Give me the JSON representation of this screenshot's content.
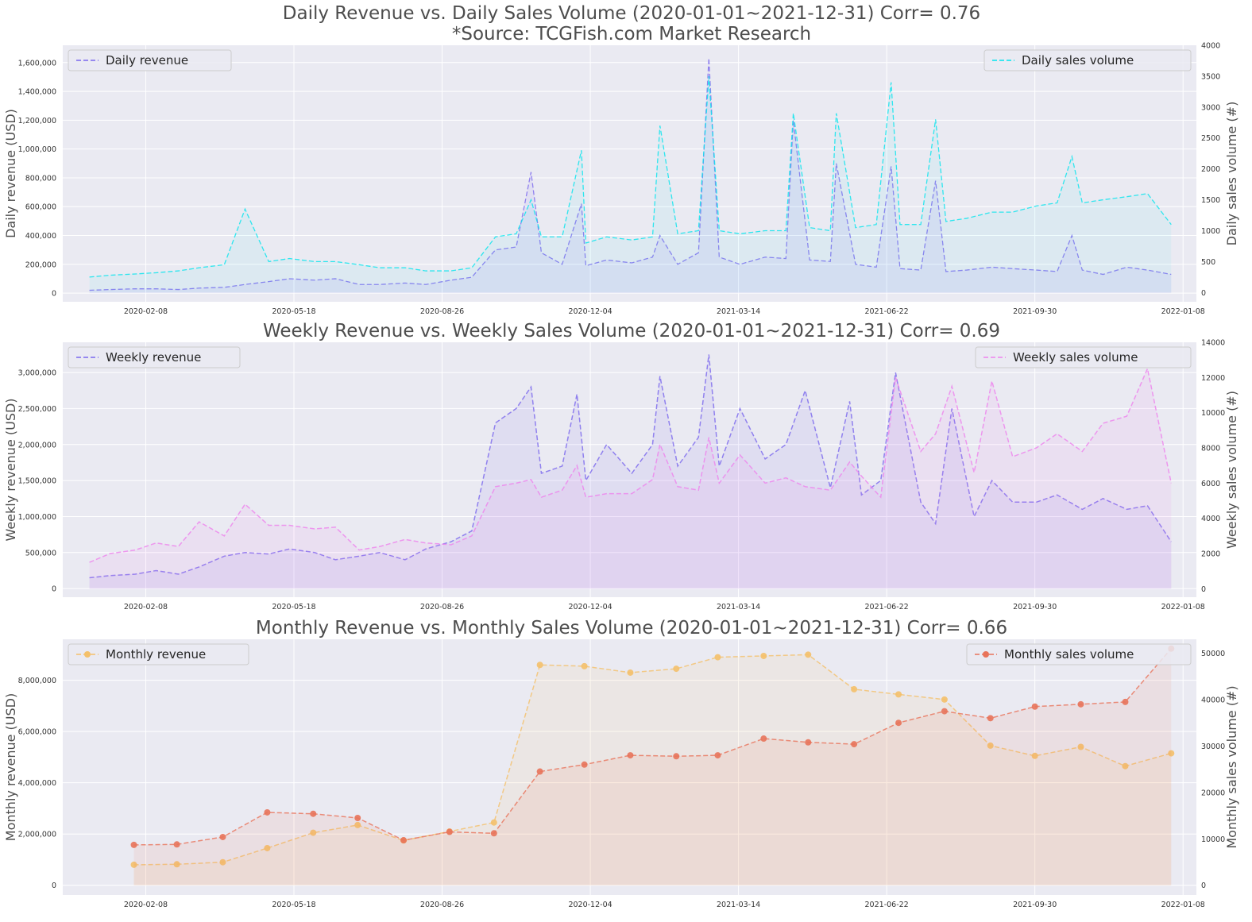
{
  "titles": {
    "daily_line1": "Daily Revenue vs. Daily Sales Volume  (2020-01-01∼2021-12-31) Corr= 0.76",
    "daily_line2": "*Source: TCGFish.com Market Research",
    "weekly": "Weekly Revenue vs. Weekly Sales Volume  (2020-01-01∼2021-12-31) Corr= 0.69",
    "monthly": "Monthly Revenue vs. Monthly Sales Volume  (2020-01-01∼2021-12-31) Corr= 0.66"
  },
  "colors": {
    "background": "#eaeaf2",
    "grid": "#ffffff",
    "daily_revenue": "#7b68ee",
    "daily_sales": "#00e5ee",
    "weekly_revenue": "#7b68ee",
    "weekly_sales": "#ee82ee",
    "monthly_revenue": "#f4c06a",
    "monthly_sales": "#e8735a"
  },
  "chart_data": [
    {
      "type": "line",
      "panel": "daily",
      "xlabel": "",
      "ylabel": "Daily revenue (USD)",
      "y2label": "Daily sales volume (#)",
      "xlim": [
        "2019-12-14",
        "2022-01-17"
      ],
      "ylim": [
        -60000,
        1720000
      ],
      "y2lim": [
        -150,
        4000
      ],
      "x_ticks": [
        "2020-02-08",
        "2020-05-18",
        "2020-08-26",
        "2020-12-04",
        "2021-03-14",
        "2021-06-22",
        "2021-09-30",
        "2022-01-08"
      ],
      "y_ticks": [
        0,
        200000,
        400000,
        600000,
        800000,
        1000000,
        1200000,
        1400000,
        1600000
      ],
      "y_tick_labels": [
        "0",
        "200,000",
        "400,000",
        "600,000",
        "800,000",
        "1,000,000",
        "1,200,000",
        "1,400,000",
        "1,600,000"
      ],
      "y2_ticks": [
        0,
        500,
        1000,
        1500,
        2000,
        2500,
        3000,
        3500,
        4000
      ],
      "grid": true,
      "legend_left": "top-left",
      "legend_right": "top-right",
      "series": [
        {
          "name": "Daily revenue",
          "axis": "left",
          "style": "dashed",
          "x": [
            "2020-01-01",
            "2020-01-15",
            "2020-02-01",
            "2020-02-15",
            "2020-03-01",
            "2020-03-15",
            "2020-04-01",
            "2020-04-15",
            "2020-05-01",
            "2020-05-15",
            "2020-06-01",
            "2020-06-15",
            "2020-07-01",
            "2020-07-15",
            "2020-08-01",
            "2020-08-15",
            "2020-09-01",
            "2020-09-15",
            "2020-10-01",
            "2020-10-15",
            "2020-10-25",
            "2020-11-01",
            "2020-11-15",
            "2020-11-28",
            "2020-12-01",
            "2020-12-15",
            "2021-01-01",
            "2021-01-15",
            "2021-01-20",
            "2021-02-01",
            "2021-02-15",
            "2021-02-22",
            "2021-03-01",
            "2021-03-15",
            "2021-04-01",
            "2021-04-15",
            "2021-04-20",
            "2021-05-01",
            "2021-05-15",
            "2021-05-19",
            "2021-06-01",
            "2021-06-15",
            "2021-06-25",
            "2021-07-01",
            "2021-07-15",
            "2021-07-25",
            "2021-08-01",
            "2021-08-15",
            "2021-09-01",
            "2021-09-15",
            "2021-10-01",
            "2021-10-15",
            "2021-10-25",
            "2021-11-01",
            "2021-11-15",
            "2021-12-01",
            "2021-12-15",
            "2021-12-31"
          ],
          "y": [
            20000,
            25000,
            30000,
            30000,
            25000,
            35000,
            40000,
            60000,
            80000,
            100000,
            90000,
            100000,
            60000,
            60000,
            70000,
            60000,
            90000,
            110000,
            300000,
            320000,
            840000,
            280000,
            200000,
            620000,
            190000,
            230000,
            210000,
            250000,
            400000,
            200000,
            280000,
            1630000,
            250000,
            200000,
            250000,
            240000,
            1200000,
            230000,
            220000,
            900000,
            200000,
            180000,
            880000,
            170000,
            160000,
            780000,
            150000,
            160000,
            180000,
            170000,
            160000,
            150000,
            400000,
            160000,
            130000,
            180000,
            160000,
            130000
          ]
        },
        {
          "name": "Daily sales volume",
          "axis": "right",
          "style": "dashed",
          "x": [
            "2020-01-01",
            "2020-01-15",
            "2020-02-01",
            "2020-02-15",
            "2020-03-01",
            "2020-03-15",
            "2020-04-01",
            "2020-04-15",
            "2020-05-01",
            "2020-05-15",
            "2020-06-01",
            "2020-06-15",
            "2020-07-01",
            "2020-07-15",
            "2020-08-01",
            "2020-08-15",
            "2020-09-01",
            "2020-09-15",
            "2020-10-01",
            "2020-10-15",
            "2020-10-25",
            "2020-11-01",
            "2020-11-15",
            "2020-11-28",
            "2020-12-01",
            "2020-12-15",
            "2021-01-01",
            "2021-01-15",
            "2021-01-20",
            "2021-02-01",
            "2021-02-15",
            "2021-02-22",
            "2021-03-01",
            "2021-03-15",
            "2021-04-01",
            "2021-04-15",
            "2021-04-20",
            "2021-05-01",
            "2021-05-15",
            "2021-05-19",
            "2021-06-01",
            "2021-06-15",
            "2021-06-25",
            "2021-07-01",
            "2021-07-15",
            "2021-07-25",
            "2021-08-01",
            "2021-08-15",
            "2021-09-01",
            "2021-09-15",
            "2021-10-01",
            "2021-10-15",
            "2021-10-25",
            "2021-11-01",
            "2021-11-15",
            "2021-12-01",
            "2021-12-15",
            "2021-12-31"
          ],
          "y": [
            250,
            280,
            300,
            320,
            350,
            400,
            450,
            1350,
            500,
            550,
            500,
            500,
            450,
            400,
            400,
            350,
            350,
            400,
            900,
            950,
            1500,
            900,
            900,
            2300,
            800,
            900,
            850,
            900,
            2700,
            950,
            1000,
            3500,
            1000,
            950,
            1000,
            1000,
            2900,
            1050,
            1000,
            2900,
            1050,
            1100,
            3400,
            1100,
            1100,
            2800,
            1150,
            1200,
            1300,
            1300,
            1400,
            1450,
            2200,
            1450,
            1500,
            1550,
            1600,
            1100
          ]
        }
      ]
    },
    {
      "type": "area",
      "panel": "weekly",
      "xlabel": "",
      "ylabel": "Weekly revenue (USD)",
      "y2label": "Weekly sales volume (#)",
      "xlim": [
        "2019-12-14",
        "2022-01-17"
      ],
      "ylim": [
        -120000,
        3420000
      ],
      "y2lim": [
        -480,
        14000
      ],
      "x_ticks": [
        "2020-02-08",
        "2020-05-18",
        "2020-08-26",
        "2020-12-04",
        "2021-03-14",
        "2021-06-22",
        "2021-09-30",
        "2022-01-08"
      ],
      "y_ticks": [
        0,
        500000,
        1000000,
        1500000,
        2000000,
        2500000,
        3000000
      ],
      "y_tick_labels": [
        "0",
        "500,000",
        "1,000,000",
        "1,500,000",
        "2,000,000",
        "2,500,000",
        "3,000,000"
      ],
      "y2_ticks": [
        0,
        2000,
        4000,
        6000,
        8000,
        10000,
        12000,
        14000
      ],
      "grid": true,
      "legend_left": "top-left",
      "legend_right": "top-right",
      "series": [
        {
          "name": "Weekly revenue",
          "axis": "left",
          "style": "dashed",
          "x": [
            "2020-01-01",
            "2020-01-15",
            "2020-02-01",
            "2020-02-15",
            "2020-03-01",
            "2020-03-15",
            "2020-04-01",
            "2020-04-15",
            "2020-05-01",
            "2020-05-15",
            "2020-06-01",
            "2020-06-15",
            "2020-07-01",
            "2020-07-15",
            "2020-08-01",
            "2020-08-15",
            "2020-09-01",
            "2020-09-15",
            "2020-10-01",
            "2020-10-15",
            "2020-10-25",
            "2020-11-01",
            "2020-11-15",
            "2020-11-25",
            "2020-12-01",
            "2020-12-15",
            "2021-01-01",
            "2021-01-15",
            "2021-01-20",
            "2021-02-01",
            "2021-02-15",
            "2021-02-22",
            "2021-03-01",
            "2021-03-15",
            "2021-04-01",
            "2021-04-15",
            "2021-04-28",
            "2021-05-15",
            "2021-05-28",
            "2021-06-05",
            "2021-06-18",
            "2021-06-28",
            "2021-07-15",
            "2021-07-25",
            "2021-08-05",
            "2021-08-20",
            "2021-09-01",
            "2021-09-15",
            "2021-10-01",
            "2021-10-15",
            "2021-11-01",
            "2021-11-15",
            "2021-12-01",
            "2021-12-15",
            "2021-12-31"
          ],
          "y": [
            150000,
            180000,
            200000,
            250000,
            200000,
            300000,
            450000,
            500000,
            480000,
            550000,
            500000,
            400000,
            450000,
            500000,
            400000,
            550000,
            650000,
            800000,
            2300000,
            2500000,
            2800000,
            1600000,
            1700000,
            2700000,
            1500000,
            2000000,
            1600000,
            2000000,
            2950000,
            1700000,
            2100000,
            3250000,
            1700000,
            2500000,
            1800000,
            2000000,
            2750000,
            1400000,
            2600000,
            1300000,
            1500000,
            3000000,
            1200000,
            900000,
            2500000,
            1000000,
            1500000,
            1200000,
            1200000,
            1300000,
            1100000,
            1250000,
            1100000,
            1150000,
            650000
          ]
        },
        {
          "name": "Weekly sales volume",
          "axis": "right",
          "style": "dashed",
          "x": [
            "2020-01-01",
            "2020-01-15",
            "2020-02-01",
            "2020-02-15",
            "2020-03-01",
            "2020-03-15",
            "2020-04-01",
            "2020-04-15",
            "2020-05-01",
            "2020-05-15",
            "2020-06-01",
            "2020-06-15",
            "2020-07-01",
            "2020-07-15",
            "2020-08-01",
            "2020-08-15",
            "2020-09-01",
            "2020-09-15",
            "2020-10-01",
            "2020-10-15",
            "2020-10-25",
            "2020-11-01",
            "2020-11-15",
            "2020-11-25",
            "2020-12-01",
            "2020-12-15",
            "2021-01-01",
            "2021-01-15",
            "2021-01-20",
            "2021-02-01",
            "2021-02-15",
            "2021-02-22",
            "2021-03-01",
            "2021-03-15",
            "2021-04-01",
            "2021-04-15",
            "2021-04-28",
            "2021-05-15",
            "2021-05-28",
            "2021-06-05",
            "2021-06-18",
            "2021-06-28",
            "2021-07-15",
            "2021-07-25",
            "2021-08-05",
            "2021-08-20",
            "2021-09-01",
            "2021-09-15",
            "2021-10-01",
            "2021-10-15",
            "2021-11-01",
            "2021-11-15",
            "2021-12-01",
            "2021-12-15",
            "2021-12-31"
          ],
          "y": [
            1500,
            2000,
            2200,
            2600,
            2400,
            3800,
            3000,
            4800,
            3600,
            3600,
            3400,
            3500,
            2200,
            2400,
            2800,
            2600,
            2500,
            3000,
            5800,
            6000,
            6200,
            5200,
            5600,
            7000,
            5200,
            5400,
            5400,
            6200,
            8200,
            5800,
            5600,
            8600,
            6000,
            7600,
            6000,
            6300,
            5800,
            5600,
            7200,
            6400,
            5200,
            12000,
            7800,
            8800,
            11500,
            6600,
            11800,
            7500,
            8000,
            8800,
            7800,
            9400,
            9800,
            12500,
            6000
          ]
        }
      ]
    },
    {
      "type": "area",
      "panel": "monthly",
      "xlabel": "",
      "ylabel": "Monthly revenue (USD)",
      "y2label": "Monthly sales volume (#)",
      "xlim": [
        "2019-12-14",
        "2022-01-17"
      ],
      "ylim": [
        -380000,
        9600000
      ],
      "y2lim": [
        -2100,
        53000
      ],
      "x_ticks": [
        "2020-02-08",
        "2020-05-18",
        "2020-08-26",
        "2020-12-04",
        "2021-03-14",
        "2021-06-22",
        "2021-09-30",
        "2022-01-08"
      ],
      "y_ticks": [
        0,
        2000000,
        4000000,
        6000000,
        8000000
      ],
      "y_tick_labels": [
        "0",
        "2,000,000",
        "4,000,000",
        "6,000,000",
        "8,000,000"
      ],
      "y2_ticks": [
        0,
        10000,
        20000,
        30000,
        40000,
        50000
      ],
      "grid": true,
      "legend_left": "top-left",
      "legend_right": "top-right",
      "series": [
        {
          "name": "Monthly revenue",
          "axis": "left",
          "style": "dashed",
          "markers": true,
          "x": [
            "2020-01-31",
            "2020-02-29",
            "2020-03-31",
            "2020-04-30",
            "2020-05-31",
            "2020-06-30",
            "2020-07-31",
            "2020-08-31",
            "2020-09-30",
            "2020-10-31",
            "2020-11-30",
            "2020-12-31",
            "2021-01-31",
            "2021-02-28",
            "2021-03-31",
            "2021-04-30",
            "2021-05-31",
            "2021-06-30",
            "2021-07-31",
            "2021-08-31",
            "2021-09-30",
            "2021-10-31",
            "2021-11-30",
            "2021-12-31"
          ],
          "y": [
            800000,
            820000,
            900000,
            1450000,
            2050000,
            2350000,
            1750000,
            2100000,
            2450000,
            8600000,
            8550000,
            8300000,
            8450000,
            8900000,
            8950000,
            9000000,
            7650000,
            7450000,
            7250000,
            5450000,
            5050000,
            5400000,
            4650000,
            5150000
          ]
        },
        {
          "name": "Monthly sales volume",
          "axis": "right",
          "style": "dashed",
          "markers": true,
          "x": [
            "2020-01-31",
            "2020-02-29",
            "2020-03-31",
            "2020-04-30",
            "2020-05-31",
            "2020-06-30",
            "2020-07-31",
            "2020-08-31",
            "2020-09-30",
            "2020-10-31",
            "2020-11-30",
            "2020-12-31",
            "2021-01-31",
            "2021-02-28",
            "2021-03-31",
            "2021-04-30",
            "2021-05-31",
            "2021-06-30",
            "2021-07-31",
            "2021-08-31",
            "2021-09-30",
            "2021-10-31",
            "2021-11-30",
            "2021-12-31"
          ],
          "y": [
            8700,
            8800,
            10400,
            15700,
            15400,
            14500,
            9700,
            11500,
            11200,
            24500,
            26000,
            28000,
            27800,
            28000,
            31600,
            30800,
            30400,
            35000,
            37500,
            36000,
            38500,
            39000,
            39500,
            51000
          ]
        }
      ]
    }
  ]
}
